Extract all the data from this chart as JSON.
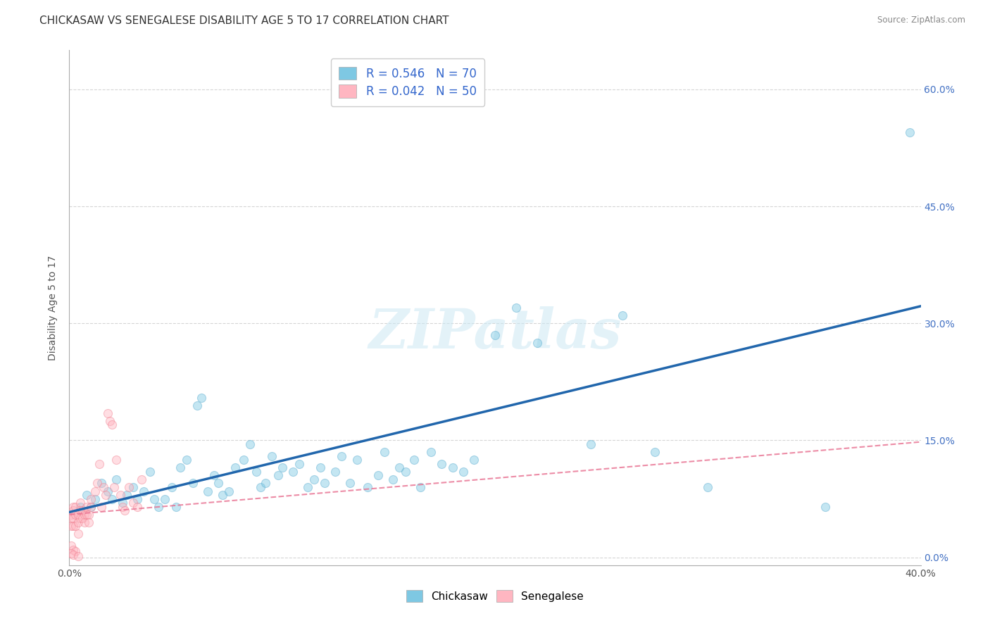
{
  "title": "CHICKASAW VS SENEGALESE DISABILITY AGE 5 TO 17 CORRELATION CHART",
  "source": "Source: ZipAtlas.com",
  "ylabel": "Disability Age 5 to 17",
  "watermark": "ZIPatlas",
  "xlim": [
    0.0,
    0.4
  ],
  "ylim": [
    -0.01,
    0.65
  ],
  "yticks": [
    0.0,
    0.15,
    0.3,
    0.45,
    0.6
  ],
  "ytick_labels_right": [
    "0.0%",
    "15.0%",
    "30.0%",
    "45.0%",
    "60.0%"
  ],
  "xtick_labels_shown": [
    "0.0%",
    "",
    "",
    "",
    "",
    "",
    "",
    "",
    "40.0%"
  ],
  "blue_color": "#7ec8e3",
  "blue_edge_color": "#5aabcf",
  "pink_color": "#ffb6c1",
  "pink_edge_color": "#f08090",
  "blue_line_color": "#2166ac",
  "pink_line_color": "#e87090",
  "legend_R1": "0.546",
  "legend_N1": "70",
  "legend_R2": "0.042",
  "legend_N2": "50",
  "legend_label1": "Chickasaw",
  "legend_label2": "Senegalese",
  "blue_trend_x": [
    0.0,
    0.4
  ],
  "blue_trend_y": [
    0.058,
    0.322
  ],
  "pink_trend_x": [
    0.0,
    0.4
  ],
  "pink_trend_y": [
    0.055,
    0.148
  ],
  "blue_points_x": [
    0.005,
    0.008,
    0.01,
    0.012,
    0.015,
    0.018,
    0.02,
    0.022,
    0.025,
    0.027,
    0.03,
    0.032,
    0.035,
    0.038,
    0.04,
    0.042,
    0.045,
    0.048,
    0.05,
    0.052,
    0.055,
    0.058,
    0.06,
    0.062,
    0.065,
    0.068,
    0.07,
    0.072,
    0.075,
    0.078,
    0.082,
    0.085,
    0.088,
    0.09,
    0.092,
    0.095,
    0.098,
    0.1,
    0.105,
    0.108,
    0.112,
    0.115,
    0.118,
    0.12,
    0.125,
    0.128,
    0.132,
    0.135,
    0.14,
    0.145,
    0.148,
    0.152,
    0.155,
    0.158,
    0.162,
    0.165,
    0.17,
    0.175,
    0.18,
    0.185,
    0.19,
    0.2,
    0.21,
    0.22,
    0.245,
    0.26,
    0.275,
    0.3,
    0.355,
    0.395
  ],
  "blue_points_y": [
    0.065,
    0.08,
    0.065,
    0.075,
    0.095,
    0.085,
    0.075,
    0.1,
    0.07,
    0.08,
    0.09,
    0.075,
    0.085,
    0.11,
    0.075,
    0.065,
    0.075,
    0.09,
    0.065,
    0.115,
    0.125,
    0.095,
    0.195,
    0.205,
    0.085,
    0.105,
    0.095,
    0.08,
    0.085,
    0.115,
    0.125,
    0.145,
    0.11,
    0.09,
    0.095,
    0.13,
    0.105,
    0.115,
    0.11,
    0.12,
    0.09,
    0.1,
    0.115,
    0.095,
    0.11,
    0.13,
    0.095,
    0.125,
    0.09,
    0.105,
    0.135,
    0.1,
    0.115,
    0.11,
    0.125,
    0.09,
    0.135,
    0.12,
    0.115,
    0.11,
    0.125,
    0.285,
    0.32,
    0.275,
    0.145,
    0.31,
    0.135,
    0.09,
    0.065,
    0.545
  ],
  "pink_points_x": [
    0.001,
    0.001,
    0.001,
    0.002,
    0.002,
    0.002,
    0.002,
    0.003,
    0.003,
    0.003,
    0.004,
    0.004,
    0.004,
    0.005,
    0.005,
    0.005,
    0.006,
    0.006,
    0.007,
    0.007,
    0.008,
    0.008,
    0.009,
    0.009,
    0.01,
    0.01,
    0.012,
    0.013,
    0.014,
    0.015,
    0.016,
    0.017,
    0.018,
    0.019,
    0.02,
    0.021,
    0.022,
    0.024,
    0.025,
    0.026,
    0.028,
    0.03,
    0.032,
    0.034,
    0.001,
    0.002,
    0.003,
    0.001,
    0.002,
    0.004
  ],
  "pink_points_y": [
    0.055,
    0.05,
    0.04,
    0.065,
    0.06,
    0.05,
    0.04,
    0.065,
    0.055,
    0.04,
    0.055,
    0.045,
    0.03,
    0.07,
    0.06,
    0.05,
    0.06,
    0.05,
    0.055,
    0.045,
    0.065,
    0.055,
    0.055,
    0.045,
    0.075,
    0.065,
    0.085,
    0.095,
    0.12,
    0.065,
    0.09,
    0.08,
    0.185,
    0.175,
    0.17,
    0.09,
    0.125,
    0.08,
    0.065,
    0.06,
    0.09,
    0.07,
    0.065,
    0.1,
    0.015,
    0.01,
    0.008,
    0.005,
    0.003,
    0.002
  ],
  "grid_color": "#cccccc",
  "bg_color": "#ffffff",
  "marker_size": 75,
  "marker_alpha": 0.45,
  "title_fontsize": 11,
  "axis_label_fontsize": 10,
  "tick_fontsize": 10,
  "legend_fontsize": 12,
  "right_tick_color": "#4472c4"
}
